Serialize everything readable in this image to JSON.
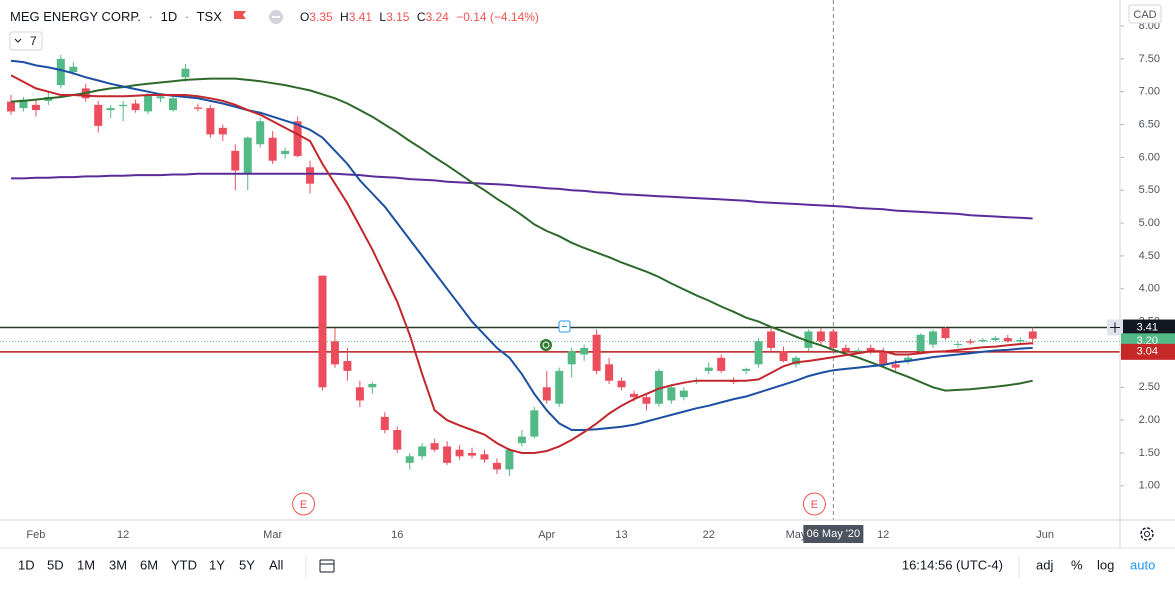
{
  "header": {
    "symbol": "MEG ENERGY CORP.",
    "interval": "1D",
    "exchange": "TSX",
    "o": "O",
    "h": "H",
    "l": "L",
    "c": "C",
    "change": "−0.14 (−4.14%)",
    "indicators": "7"
  },
  "chart_data": {
    "type": "candlestick",
    "currency": "CAD",
    "crosshair_label": "06 May '20",
    "events": [
      "E",
      "E"
    ],
    "categories": [
      null,
      null,
      "Feb",
      null,
      null,
      null,
      null,
      null,
      null,
      "12",
      null,
      null,
      null,
      null,
      null,
      null,
      null,
      null,
      null,
      null,
      null,
      "Mar",
      null,
      null,
      null,
      null,
      null,
      null,
      null,
      null,
      null,
      "16",
      null,
      null,
      null,
      null,
      null,
      null,
      null,
      null,
      null,
      null,
      null,
      "Apr",
      null,
      null,
      null,
      null,
      null,
      "13",
      null,
      null,
      null,
      null,
      null,
      null,
      "22",
      null,
      null,
      null,
      null,
      null,
      null,
      "May",
      null,
      null,
      null,
      null,
      null,
      null,
      "12",
      null,
      null,
      null,
      null,
      null,
      null,
      null,
      null,
      null,
      null,
      null,
      null,
      "Jun"
    ],
    "open": [
      6.85,
      6.75,
      6.8,
      6.86,
      7.1,
      7.3,
      7.05,
      6.8,
      6.72,
      6.78,
      6.82,
      6.7,
      6.9,
      6.72,
      7.22,
      6.76,
      6.75,
      6.45,
      6.1,
      5.75,
      6.2,
      6.3,
      6.05,
      6.55,
      5.85,
      4.2,
      3.2,
      2.9,
      2.5,
      2.5,
      2.05,
      1.85,
      1.35,
      1.45,
      1.65,
      1.6,
      1.55,
      1.5,
      1.48,
      1.35,
      1.25,
      1.65,
      1.75,
      2.5,
      2.25,
      2.85,
      3.0,
      3.3,
      2.85,
      2.6,
      2.4,
      2.35,
      2.25,
      2.3,
      2.35,
      2.6,
      2.75,
      2.95,
      2.6,
      2.75,
      2.85,
      3.35,
      3.05,
      2.85,
      3.1,
      3.35,
      3.35,
      3.1,
      3.05,
      3.1,
      3.05,
      2.85,
      2.9,
      3.05,
      3.15,
      3.4,
      3.15,
      3.2,
      3.2,
      3.22,
      3.25,
      3.2,
      3.35,
      null
    ],
    "high": [
      6.95,
      6.92,
      6.88,
      7.0,
      7.56,
      7.45,
      7.12,
      6.86,
      6.8,
      6.86,
      6.88,
      6.98,
      6.98,
      6.94,
      7.42,
      6.82,
      6.8,
      6.5,
      6.2,
      6.32,
      6.6,
      6.4,
      6.15,
      6.62,
      5.95,
      4.2,
      3.4,
      3.1,
      2.6,
      2.58,
      2.12,
      1.9,
      1.5,
      1.65,
      1.72,
      1.68,
      1.62,
      1.58,
      1.55,
      1.42,
      1.58,
      1.85,
      2.2,
      2.75,
      2.8,
      3.1,
      3.15,
      3.38,
      2.95,
      2.65,
      2.45,
      2.4,
      2.78,
      2.55,
      2.5,
      2.65,
      2.88,
      3.0,
      2.65,
      2.8,
      3.25,
      3.4,
      3.12,
      2.98,
      3.38,
      3.4,
      3.38,
      3.15,
      3.1,
      3.15,
      3.1,
      2.92,
      2.98,
      3.32,
      3.38,
      3.42,
      3.2,
      3.24,
      3.25,
      3.28,
      3.3,
      3.26,
      3.41,
      null
    ],
    "low": [
      6.65,
      6.7,
      6.62,
      6.8,
      7.05,
      7.25,
      6.85,
      6.38,
      6.6,
      6.55,
      6.68,
      6.66,
      6.84,
      6.7,
      7.15,
      6.7,
      6.3,
      6.25,
      5.5,
      5.5,
      6.15,
      5.9,
      5.98,
      6.0,
      5.45,
      2.45,
      2.8,
      2.6,
      2.2,
      2.4,
      1.8,
      1.5,
      1.25,
      1.4,
      1.52,
      1.32,
      1.4,
      1.42,
      1.35,
      1.18,
      1.15,
      1.6,
      1.72,
      2.25,
      2.2,
      2.65,
      2.9,
      2.7,
      2.55,
      2.45,
      2.28,
      2.15,
      2.2,
      2.25,
      2.3,
      2.55,
      2.7,
      2.72,
      2.55,
      2.7,
      2.8,
      3.05,
      2.88,
      2.8,
      3.05,
      3.15,
      3.05,
      3.0,
      3.02,
      3.0,
      2.82,
      2.75,
      2.85,
      3.0,
      3.1,
      3.22,
      3.1,
      3.15,
      3.18,
      3.2,
      3.18,
      3.16,
      3.15,
      null
    ],
    "close": [
      6.7,
      6.88,
      6.72,
      6.92,
      7.5,
      7.38,
      6.9,
      6.48,
      6.75,
      6.8,
      6.72,
      6.95,
      6.93,
      6.9,
      7.35,
      6.74,
      6.35,
      6.35,
      5.8,
      6.3,
      6.55,
      5.95,
      6.1,
      6.02,
      5.6,
      2.5,
      2.85,
      2.75,
      2.3,
      2.55,
      1.85,
      1.55,
      1.45,
      1.6,
      1.55,
      1.35,
      1.45,
      1.46,
      1.4,
      1.25,
      1.55,
      1.75,
      2.15,
      2.3,
      2.75,
      3.05,
      3.1,
      2.75,
      2.6,
      2.5,
      2.35,
      2.25,
      2.75,
      2.5,
      2.45,
      2.6,
      2.8,
      2.75,
      2.58,
      2.78,
      3.2,
      3.1,
      2.9,
      2.95,
      3.35,
      3.2,
      3.1,
      3.05,
      3.06,
      3.05,
      2.85,
      2.8,
      2.95,
      3.3,
      3.35,
      3.25,
      3.16,
      3.18,
      3.22,
      3.25,
      3.2,
      3.22,
      3.24,
      null
    ],
    "up_color": "#53b987",
    "down_color": "#eb4d5c",
    "series": [
      {
        "color": "#5b2c99",
        "values": [
          5.68,
          5.68,
          5.69,
          5.69,
          5.7,
          5.7,
          5.71,
          5.71,
          5.72,
          5.72,
          5.73,
          5.73,
          5.73,
          5.74,
          5.74,
          5.75,
          5.75,
          5.75,
          5.75,
          5.75,
          5.75,
          5.75,
          5.75,
          5.75,
          5.75,
          5.75,
          5.75,
          5.74,
          5.73,
          5.71,
          5.7,
          5.69,
          5.67,
          5.66,
          5.65,
          5.63,
          5.62,
          5.61,
          5.6,
          5.59,
          5.58,
          5.56,
          5.55,
          5.53,
          5.52,
          5.5,
          5.49,
          5.47,
          5.46,
          5.44,
          5.43,
          5.42,
          5.41,
          5.4,
          5.39,
          5.38,
          5.37,
          5.36,
          5.35,
          5.34,
          5.32,
          5.31,
          5.3,
          5.29,
          5.28,
          5.27,
          5.26,
          5.25,
          5.23,
          5.22,
          5.21,
          5.19,
          5.18,
          5.17,
          5.16,
          5.15,
          5.14,
          5.12,
          5.11,
          5.1,
          5.09,
          5.08,
          5.07,
          null
        ]
      },
      {
        "color": "#2d6a2a",
        "values": [
          6.85,
          6.86,
          6.88,
          6.9,
          6.92,
          6.95,
          6.98,
          7.02,
          7.05,
          7.07,
          7.1,
          7.12,
          7.14,
          7.16,
          7.18,
          7.19,
          7.2,
          7.2,
          7.2,
          7.18,
          7.16,
          7.13,
          7.1,
          7.06,
          7.02,
          6.96,
          6.9,
          6.82,
          6.72,
          6.62,
          6.5,
          6.38,
          6.25,
          6.13,
          6.0,
          5.88,
          5.75,
          5.62,
          5.5,
          5.37,
          5.25,
          5.12,
          4.98,
          4.88,
          4.8,
          4.7,
          4.62,
          4.55,
          4.48,
          4.4,
          4.33,
          4.26,
          4.18,
          4.08,
          3.99,
          3.9,
          3.82,
          3.73,
          3.65,
          3.56,
          3.5,
          3.42,
          3.35,
          3.27,
          3.2,
          3.14,
          3.07,
          3.01,
          2.95,
          2.88,
          2.81,
          2.73,
          2.66,
          2.58,
          2.5,
          2.45,
          2.46,
          2.47,
          2.49,
          2.51,
          2.53,
          2.56,
          2.6,
          null
        ]
      },
      {
        "color": "#1c4fa1",
        "values": [
          7.47,
          7.45,
          7.4,
          7.37,
          7.33,
          7.28,
          7.22,
          7.17,
          7.12,
          7.08,
          7.04,
          7.0,
          6.96,
          6.94,
          6.92,
          6.9,
          6.86,
          6.82,
          6.77,
          6.72,
          6.68,
          6.62,
          6.56,
          6.5,
          6.42,
          6.3,
          6.1,
          5.9,
          5.65,
          5.45,
          5.25,
          5.0,
          4.75,
          4.5,
          4.25,
          4.0,
          3.75,
          3.5,
          3.3,
          3.1,
          2.95,
          2.7,
          2.4,
          2.15,
          1.95,
          1.85,
          1.85,
          1.86,
          1.88,
          1.9,
          1.93,
          1.98,
          2.03,
          2.08,
          2.13,
          2.18,
          2.22,
          2.27,
          2.32,
          2.36,
          2.42,
          2.48,
          2.54,
          2.6,
          2.67,
          2.72,
          2.76,
          2.78,
          2.8,
          2.82,
          2.84,
          2.88,
          2.9,
          2.93,
          2.96,
          2.98,
          3.0,
          3.02,
          3.04,
          3.06,
          3.07,
          3.09,
          3.1,
          null
        ]
      },
      {
        "color": "#c2272d",
        "values": [
          7.25,
          7.15,
          7.05,
          7.0,
          6.95,
          6.95,
          6.94,
          6.93,
          6.93,
          6.93,
          6.94,
          6.95,
          6.95,
          6.95,
          6.95,
          6.93,
          6.9,
          6.86,
          6.8,
          6.72,
          6.65,
          6.55,
          6.45,
          6.35,
          6.25,
          5.9,
          5.6,
          5.3,
          4.95,
          4.6,
          4.2,
          3.8,
          3.3,
          2.7,
          2.15,
          2.0,
          1.92,
          1.85,
          1.78,
          1.65,
          1.55,
          1.5,
          1.5,
          1.53,
          1.6,
          1.7,
          1.82,
          1.95,
          2.1,
          2.22,
          2.32,
          2.4,
          2.48,
          2.53,
          2.57,
          2.6,
          2.6,
          2.6,
          2.6,
          2.6,
          2.62,
          2.72,
          2.82,
          2.88,
          2.9,
          2.93,
          2.96,
          2.99,
          3.02,
          3.05,
          3.05,
          3.0,
          3.0,
          3.02,
          3.04,
          3.05,
          3.07,
          3.09,
          3.11,
          3.12,
          3.14,
          3.16,
          3.17,
          null
        ]
      }
    ],
    "price_lines": [
      {
        "value": 3.41,
        "color": "#263a26",
        "badge": "#131722",
        "style": "solid"
      },
      {
        "value": 3.2,
        "label": "3.20",
        "color": "#53b987",
        "badge": "#53b987",
        "style": "dotted"
      },
      {
        "value": 3.04,
        "color": "#b71c1c",
        "badge": "#c62828",
        "style": "solid"
      }
    ],
    "ylim": [
      0.48,
      8.32
    ],
    "yticks": [
      {
        "value": 8,
        "label": "8.00"
      },
      {
        "value": 7.5,
        "label": "7.50"
      },
      {
        "value": 7,
        "label": "7.00"
      },
      {
        "value": 6.5,
        "label": "6.50"
      },
      {
        "value": 6,
        "label": "6.00"
      },
      {
        "value": 5.5,
        "label": "5.50"
      },
      {
        "value": 5,
        "label": "5.00"
      },
      {
        "value": 4.5,
        "label": "4.50"
      },
      {
        "value": 4,
        "label": "4.00"
      },
      {
        "value": 3.5,
        "label": "3.50"
      },
      {
        "value": 3,
        "label": "3.00"
      },
      {
        "value": 2.5,
        "label": "2.50"
      },
      {
        "value": 2,
        "label": "2.00"
      },
      {
        "value": 1.5,
        "label": "1.50"
      },
      {
        "value": 1,
        "label": "1.00"
      }
    ],
    "grid": false
  },
  "toolbar": {
    "ranges": [
      "1D",
      "5D",
      "1M",
      "3M",
      "6M",
      "YTD",
      "1Y",
      "5Y",
      "All"
    ],
    "time": "16:14:56 (UTC-4)",
    "adj": "adj",
    "percent": "%",
    "log": "log",
    "auto": "auto"
  }
}
